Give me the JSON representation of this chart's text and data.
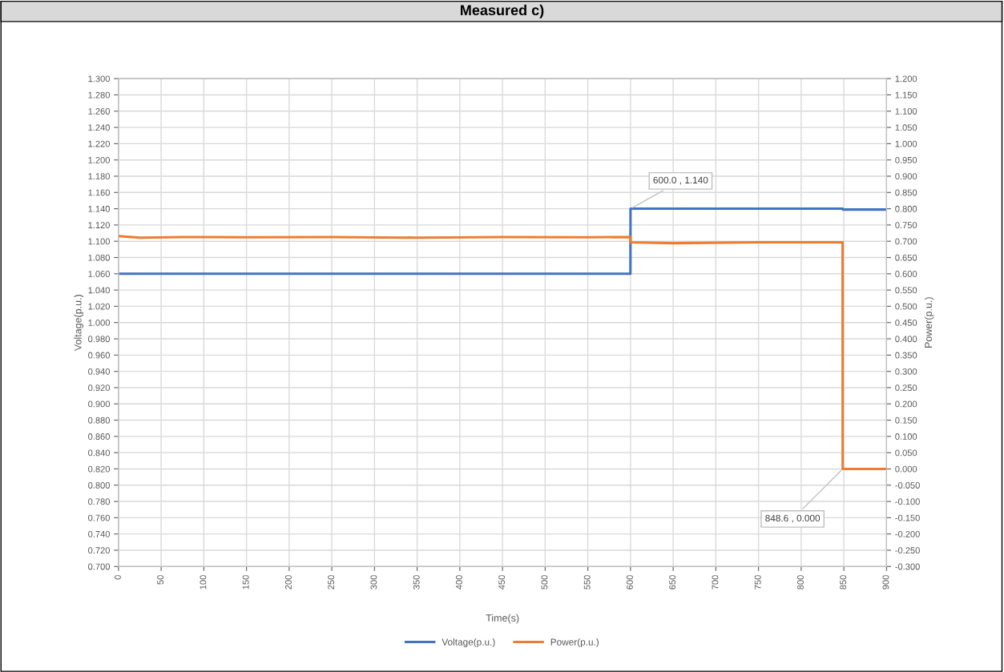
{
  "chart_data": {
    "type": "line",
    "title": "Measured c)",
    "xlabel": "Time(s)",
    "ylabel": "Voltage(p.u.)",
    "y2label": "Power(p.u.)",
    "series": [
      {
        "name": "Voltage(p.u.)",
        "color": "#4472c4",
        "x": [
          0,
          599.9,
          600,
          848.6,
          849,
          900
        ],
        "values": [
          1.06,
          1.06,
          1.14,
          1.14,
          1.139,
          1.139
        ]
      },
      {
        "name": "Power(p.u.)",
        "color": "#ed7d31",
        "axis": "y2",
        "x": [
          0,
          25,
          75,
          150,
          250,
          350,
          450,
          550,
          599.9,
          600,
          650,
          750,
          848.5,
          848.6,
          900
        ],
        "values": [
          0.716,
          0.711,
          0.713,
          0.712,
          0.713,
          0.711,
          0.713,
          0.712,
          0.713,
          0.697,
          0.694,
          0.697,
          0.697,
          0.0,
          0.0
        ]
      }
    ],
    "annotations": [
      {
        "text": "600.0 , 1.140",
        "x": 600.0,
        "y": 1.14
      },
      {
        "text": "848.6 , 0.000",
        "x": 848.6,
        "y": 0.82
      }
    ],
    "xlim": [
      0,
      900
    ],
    "xticks": [
      0,
      50,
      100,
      150,
      200,
      250,
      300,
      350,
      400,
      450,
      500,
      550,
      600,
      650,
      700,
      750,
      800,
      850,
      900
    ],
    "ylim": [
      0.7,
      1.3
    ],
    "yticks": [
      {
        "value": 0.7,
        "label": "0.700"
      },
      {
        "value": 0.72,
        "label": "0.720"
      },
      {
        "value": 0.74,
        "label": "0.740"
      },
      {
        "value": 0.76,
        "label": "0.760"
      },
      {
        "value": 0.78,
        "label": "0.780"
      },
      {
        "value": 0.8,
        "label": "0.800"
      },
      {
        "value": 0.82,
        "label": "0.820"
      },
      {
        "value": 0.84,
        "label": "0.840"
      },
      {
        "value": 0.86,
        "label": "0.860"
      },
      {
        "value": 0.88,
        "label": "0.880"
      },
      {
        "value": 0.9,
        "label": "0.900"
      },
      {
        "value": 0.92,
        "label": "0.920"
      },
      {
        "value": 0.94,
        "label": "0.940"
      },
      {
        "value": 0.96,
        "label": "0.960"
      },
      {
        "value": 0.98,
        "label": "0.980"
      },
      {
        "value": 1.0,
        "label": "1.000"
      },
      {
        "value": 1.02,
        "label": "1.020"
      },
      {
        "value": 1.04,
        "label": "1.040"
      },
      {
        "value": 1.06,
        "label": "1.060"
      },
      {
        "value": 1.08,
        "label": "1.080"
      },
      {
        "value": 1.1,
        "label": "1.100"
      },
      {
        "value": 1.12,
        "label": "1.120"
      },
      {
        "value": 1.14,
        "label": "1.140"
      },
      {
        "value": 1.16,
        "label": "1.160"
      },
      {
        "value": 1.18,
        "label": "1.180"
      },
      {
        "value": 1.2,
        "label": "1.200"
      },
      {
        "value": 1.22,
        "label": "1.220"
      },
      {
        "value": 1.24,
        "label": "1.240"
      },
      {
        "value": 1.26,
        "label": "1.260"
      },
      {
        "value": 1.28,
        "label": "1.280"
      },
      {
        "value": 1.3,
        "label": "1.300"
      }
    ],
    "y2lim": [
      -0.3,
      1.2
    ],
    "y2ticks": [
      {
        "value": -0.3,
        "label": "-0.300"
      },
      {
        "value": -0.25,
        "label": "-0.250"
      },
      {
        "value": -0.2,
        "label": "-0.200"
      },
      {
        "value": -0.15,
        "label": "-0.150"
      },
      {
        "value": -0.1,
        "label": "-0.100"
      },
      {
        "value": -0.05,
        "label": "-0.050"
      },
      {
        "value": 0.0,
        "label": "0.000"
      },
      {
        "value": 0.05,
        "label": "0.050"
      },
      {
        "value": 0.1,
        "label": "0.100"
      },
      {
        "value": 0.15,
        "label": "0.150"
      },
      {
        "value": 0.2,
        "label": "0.200"
      },
      {
        "value": 0.25,
        "label": "0.250"
      },
      {
        "value": 0.3,
        "label": "0.300"
      },
      {
        "value": 0.35,
        "label": "0.350"
      },
      {
        "value": 0.4,
        "label": "0.400"
      },
      {
        "value": 0.45,
        "label": "0.450"
      },
      {
        "value": 0.5,
        "label": "0.500"
      },
      {
        "value": 0.55,
        "label": "0.550"
      },
      {
        "value": 0.6,
        "label": "0.600"
      },
      {
        "value": 0.65,
        "label": "0.650"
      },
      {
        "value": 0.7,
        "label": "0.700"
      },
      {
        "value": 0.75,
        "label": "0.750"
      },
      {
        "value": 0.8,
        "label": "0.800"
      },
      {
        "value": 0.85,
        "label": "0.850"
      },
      {
        "value": 0.9,
        "label": "0.900"
      },
      {
        "value": 0.95,
        "label": "0.950"
      },
      {
        "value": 1.0,
        "label": "1.000"
      },
      {
        "value": 1.05,
        "label": "1.050"
      },
      {
        "value": 1.1,
        "label": "1.100"
      },
      {
        "value": 1.15,
        "label": "1.150"
      },
      {
        "value": 1.2,
        "label": "1.200"
      }
    ],
    "grid": true,
    "legend": "bottom",
    "marker": "none",
    "line_style": "solid"
  }
}
